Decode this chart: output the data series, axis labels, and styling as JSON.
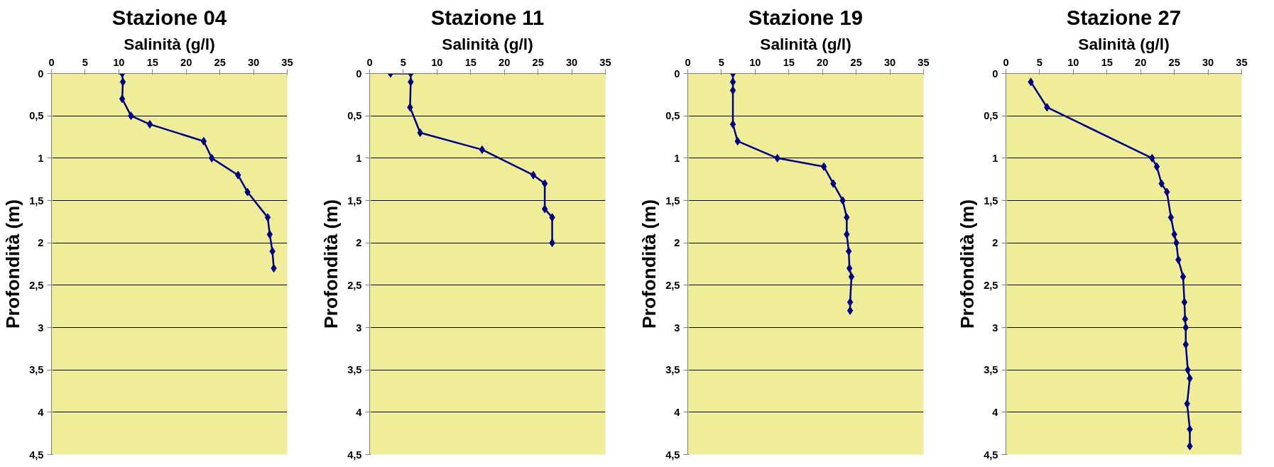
{
  "chart_data": [
    {
      "type": "line",
      "title": "Stazione 04",
      "xlabel": "Salinità (g/l)",
      "ylabel": "Profondità (m)",
      "xlim": [
        0,
        35
      ],
      "xticks": [
        0,
        5,
        10,
        15,
        20,
        25,
        30,
        35
      ],
      "ylim": [
        4.5,
        0
      ],
      "yticks": [
        0,
        {
          "value": 0.5,
          "label": "0,5"
        },
        1,
        {
          "value": 1.5,
          "label": "1,5"
        },
        2,
        {
          "value": 2.5,
          "label": "2,5"
        },
        3,
        {
          "value": 3.5,
          "label": "3,5"
        },
        4,
        {
          "value": 4.5,
          "label": "4,5"
        }
      ],
      "grid": "y",
      "marker": "diamond",
      "line_style": "solid",
      "series": [
        {
          "color": "#000080",
          "x": [
            10.5,
            10.6,
            10.5,
            11.8,
            14.6,
            22.6,
            23.8,
            27.7,
            29.1,
            32.1,
            32.4,
            32.8,
            33.0
          ],
          "values": [
            0,
            0.1,
            0.3,
            0.5,
            0.6,
            0.8,
            1.0,
            1.2,
            1.4,
            1.7,
            1.9,
            2.1,
            2.3
          ]
        }
      ]
    },
    {
      "type": "line",
      "title": "Stazione 11",
      "xlabel": "Salinità (g/l)",
      "ylabel": "Profondità (m)",
      "xlim": [
        0,
        35
      ],
      "xticks": [
        0,
        5,
        10,
        15,
        20,
        25,
        30,
        35
      ],
      "ylim": [
        4.5,
        0
      ],
      "yticks": [
        0,
        {
          "value": 0.5,
          "label": "0,5"
        },
        1,
        {
          "value": 1.5,
          "label": "1,5"
        },
        2,
        {
          "value": 2.5,
          "label": "2,5"
        },
        3,
        {
          "value": 3.5,
          "label": "3,5"
        },
        4,
        {
          "value": 4.5,
          "label": "4,5"
        }
      ],
      "grid": "y",
      "marker": "diamond",
      "line_style": "solid",
      "series": [
        {
          "color": "#000080",
          "x": [
            3.1,
            6.1,
            6.1,
            6.0,
            7.5,
            16.7,
            24.3,
            26.0,
            26.0,
            27.1,
            27.1
          ],
          "values": [
            0,
            0,
            0.1,
            0.4,
            0.7,
            0.9,
            1.2,
            1.3,
            1.6,
            1.7,
            2.0
          ]
        }
      ]
    },
    {
      "type": "line",
      "title": "Stazione 19",
      "xlabel": "Salinità (g/l)",
      "ylabel": "Profondità (m)",
      "xlim": [
        0,
        35
      ],
      "xticks": [
        0,
        5,
        10,
        15,
        20,
        25,
        30,
        35
      ],
      "ylim": [
        4.5,
        0
      ],
      "yticks": [
        0,
        {
          "value": 0.5,
          "label": "0,5"
        },
        1,
        {
          "value": 1.5,
          "label": "1,5"
        },
        2,
        {
          "value": 2.5,
          "label": "2,5"
        },
        3,
        {
          "value": 3.5,
          "label": "3,5"
        },
        4,
        {
          "value": 4.5,
          "label": "4,5"
        }
      ],
      "grid": "y",
      "marker": "diamond",
      "line_style": "solid",
      "series": [
        {
          "color": "#000080",
          "x": [
            6.7,
            6.7,
            6.7,
            6.7,
            7.4,
            13.3,
            20.2,
            21.6,
            23.0,
            23.6,
            23.6,
            23.9,
            24.0,
            24.3,
            24.1,
            24.1
          ],
          "values": [
            0,
            0.1,
            0.2,
            0.6,
            0.8,
            1.0,
            1.1,
            1.3,
            1.5,
            1.7,
            1.9,
            2.1,
            2.3,
            2.4,
            2.7,
            2.8
          ]
        }
      ]
    },
    {
      "type": "line",
      "title": "Stazione 27",
      "xlabel": "Salinità (g/l)",
      "ylabel": "Profondità (m)",
      "xlim": [
        0,
        35
      ],
      "xticks": [
        0,
        5,
        10,
        15,
        20,
        25,
        30,
        35
      ],
      "ylim": [
        4.5,
        0
      ],
      "yticks": [
        0,
        {
          "value": 0.5,
          "label": "0,5"
        },
        1,
        {
          "value": 1.5,
          "label": "1,5"
        },
        2,
        {
          "value": 2.5,
          "label": "2,5"
        },
        3,
        {
          "value": 3.5,
          "label": "3,5"
        },
        4,
        {
          "value": 4.5,
          "label": "4,5"
        }
      ],
      "grid": "y",
      "marker": "diamond",
      "line_style": "solid",
      "series": [
        {
          "color": "#000080",
          "x": [
            3.7,
            6.1,
            21.7,
            22.4,
            23.1,
            23.9,
            24.5,
            25.0,
            25.3,
            25.6,
            26.3,
            26.5,
            26.6,
            26.7,
            26.7,
            27.0,
            27.3,
            26.9,
            27.3,
            27.3
          ],
          "values": [
            0.1,
            0.4,
            1.0,
            1.1,
            1.3,
            1.4,
            1.7,
            1.9,
            2.0,
            2.2,
            2.4,
            2.7,
            2.9,
            3.0,
            3.2,
            3.5,
            3.6,
            3.9,
            4.2,
            4.4
          ]
        }
      ]
    }
  ]
}
